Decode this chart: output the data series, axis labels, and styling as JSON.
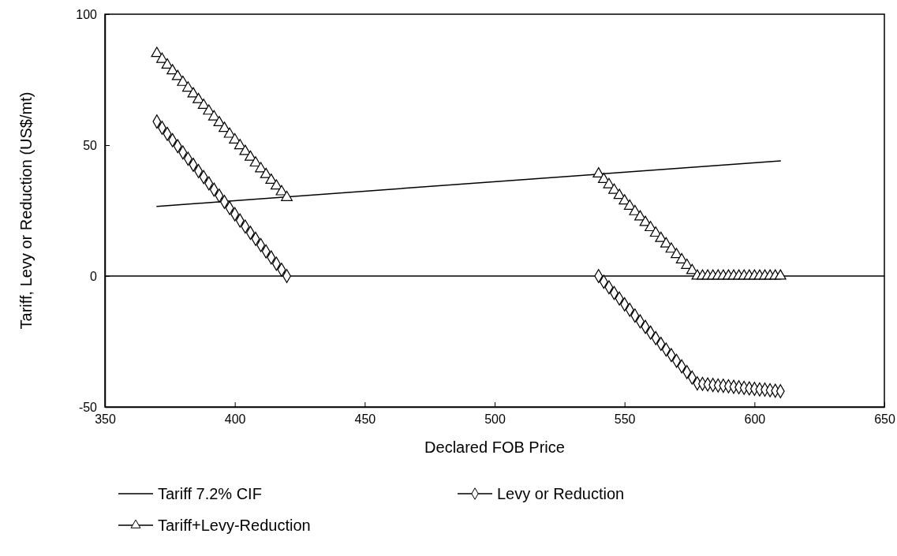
{
  "chart_data": {
    "type": "line",
    "xlabel": "Declared FOB Price",
    "ylabel": "Tariff, Levy or Reduction (US$/mt)",
    "xlim": [
      350,
      650
    ],
    "xticks": [
      350,
      400,
      450,
      500,
      550,
      600,
      650
    ],
    "ylim": [
      -50,
      100
    ],
    "yticks": [
      -50,
      0,
      50,
      100
    ],
    "grid": false,
    "legend": "bottom",
    "ref_lines": [
      {
        "axis": "y",
        "value": 0,
        "color": "#000000"
      }
    ],
    "series": [
      {
        "name": "Tariff 7.2% CIF",
        "color": "#000000",
        "marker": "none",
        "line_style": "solid",
        "x": [
          370,
          610
        ],
        "values": [
          26.6,
          44
        ]
      },
      {
        "name": "Levy or Reduction",
        "color": "#000000",
        "marker": "diamond",
        "line_style": "solid",
        "x": [
          370,
          372,
          374,
          376,
          378,
          380,
          382,
          384,
          386,
          388,
          390,
          392,
          394,
          396,
          398,
          400,
          402,
          404,
          406,
          408,
          410,
          412,
          414,
          416,
          418,
          420,
          480,
          540,
          542,
          544,
          546,
          548,
          550,
          552,
          554,
          556,
          558,
          560,
          562,
          564,
          566,
          568,
          570,
          572,
          574,
          576,
          578,
          580,
          582,
          584,
          586,
          588,
          590,
          592,
          594,
          596,
          598,
          600,
          602,
          604,
          606,
          608,
          610
        ],
        "values": [
          59,
          56.6,
          54.3,
          51.9,
          49.6,
          47.2,
          44.8,
          42.5,
          40.1,
          37.8,
          35.4,
          33.0,
          30.7,
          28.3,
          26.0,
          23.6,
          21.2,
          18.9,
          16.5,
          14.2,
          11.8,
          9.4,
          7.1,
          4.7,
          2.4,
          0,
          null,
          0,
          -2.2,
          -4.3,
          -6.5,
          -8.6,
          -10.8,
          -12.9,
          -15.1,
          -17.3,
          -19.4,
          -21.6,
          -23.7,
          -25.9,
          -28.1,
          -30.2,
          -32.4,
          -34.5,
          -36.7,
          -38.8,
          -41,
          -41.2,
          -41.4,
          -41.6,
          -41.8,
          -41.9,
          -42.1,
          -42.3,
          -42.5,
          -42.7,
          -42.9,
          -43.1,
          -43.3,
          -43.4,
          -43.6,
          -43.8,
          -44
        ]
      },
      {
        "name": "Tariff+Levy-Reduction",
        "color": "#000000",
        "marker": "triangle",
        "line_style": "solid",
        "x": [
          370,
          372,
          374,
          376,
          378,
          380,
          382,
          384,
          386,
          388,
          390,
          392,
          394,
          396,
          398,
          400,
          402,
          404,
          406,
          408,
          410,
          412,
          414,
          416,
          418,
          420,
          480,
          540,
          542,
          544,
          546,
          548,
          550,
          552,
          554,
          556,
          558,
          560,
          562,
          564,
          566,
          568,
          570,
          572,
          574,
          576,
          578,
          580,
          582,
          584,
          586,
          588,
          590,
          592,
          594,
          596,
          598,
          600,
          602,
          604,
          606,
          608,
          610
        ],
        "values": [
          85,
          82.8,
          80.6,
          78.4,
          76.2,
          74,
          71.8,
          69.6,
          67.4,
          65.2,
          63,
          60.8,
          58.6,
          56.4,
          54.2,
          52,
          49.8,
          47.6,
          45.4,
          43.2,
          41,
          38.8,
          36.6,
          34.4,
          32.2,
          30,
          null,
          39,
          36.9,
          34.9,
          32.8,
          30.8,
          28.7,
          26.7,
          24.6,
          22.6,
          20.5,
          18.5,
          16.4,
          14.4,
          12.3,
          10.3,
          8.2,
          6.2,
          4.1,
          2.1,
          0,
          0,
          0,
          0,
          0,
          0,
          0,
          0,
          0,
          0,
          0,
          0,
          0,
          0,
          0,
          0,
          0
        ]
      }
    ]
  }
}
